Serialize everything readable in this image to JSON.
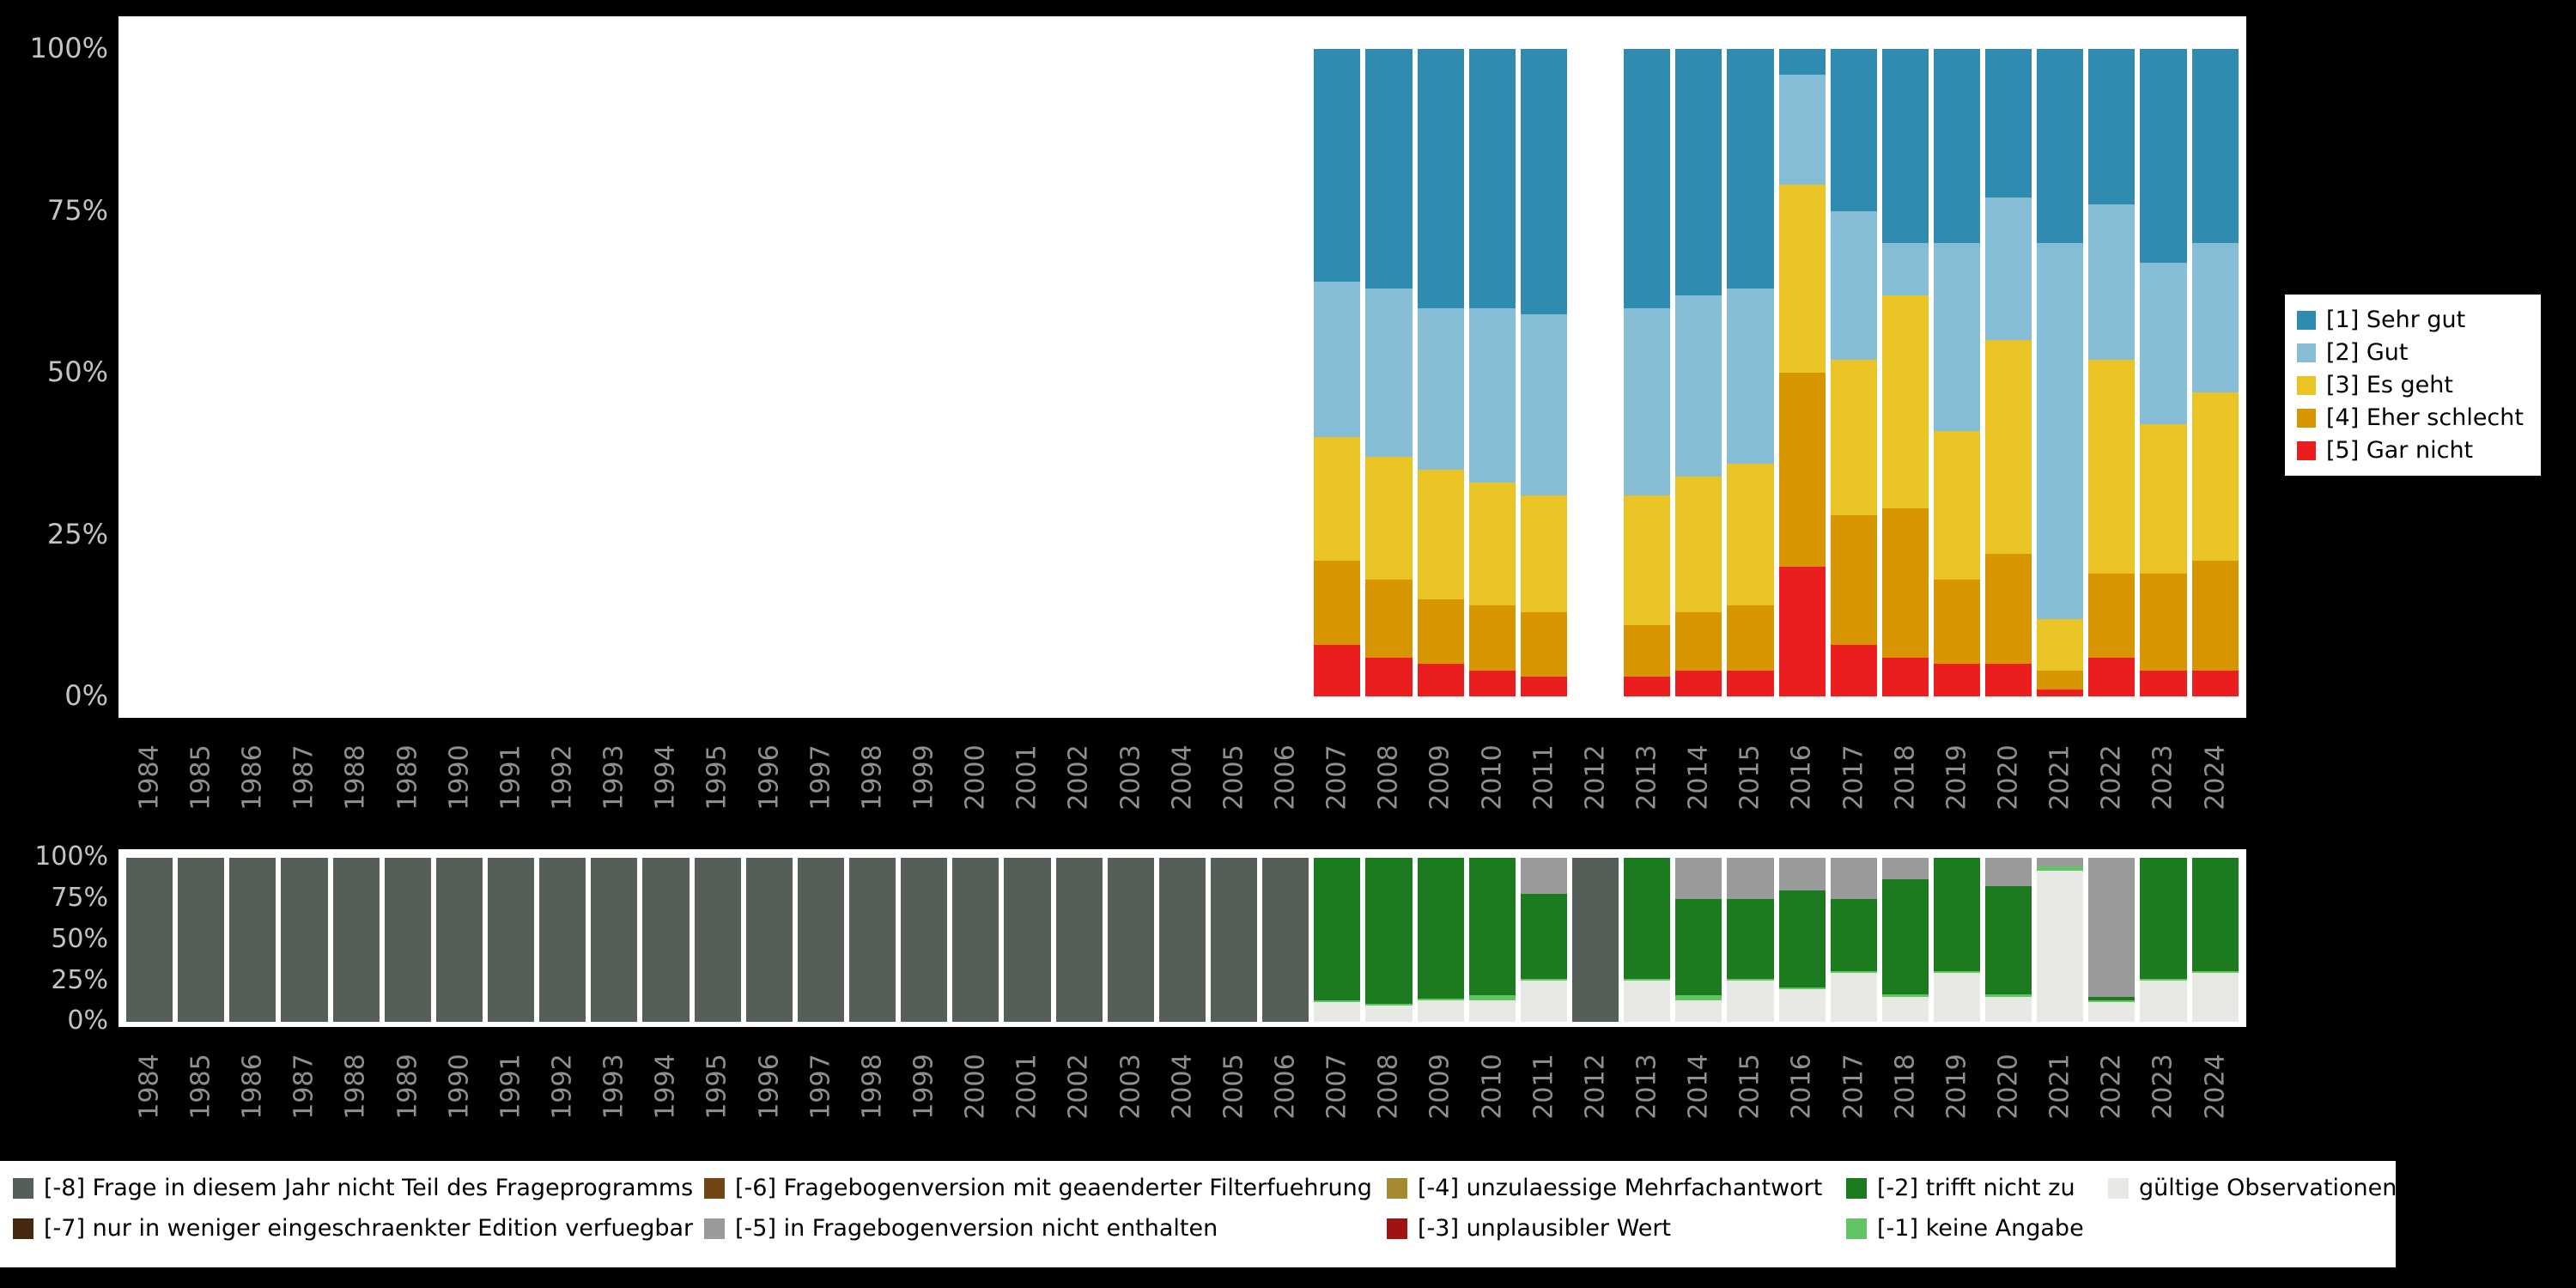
{
  "page": {
    "background": "#000000",
    "panel_background": "#ffffff"
  },
  "axes": {
    "y_tick_labels": [
      "100%",
      "75%",
      "50%",
      "25%",
      "0%"
    ],
    "x_tick_labels": [
      "1984",
      "1985",
      "1986",
      "1987",
      "1988",
      "1989",
      "1990",
      "1991",
      "1992",
      "1993",
      "1994",
      "1995",
      "1996",
      "1997",
      "1998",
      "1999",
      "2000",
      "2001",
      "2002",
      "2003",
      "2004",
      "2005",
      "2006",
      "2007",
      "2008",
      "2009",
      "2010",
      "2011",
      "2012",
      "2013",
      "2014",
      "2015",
      "2016",
      "2017",
      "2018",
      "2019",
      "2020",
      "2021",
      "2022",
      "2023",
      "2024"
    ]
  },
  "top_legend": {
    "items": [
      {
        "label": "[1] Sehr gut",
        "color": "#2f8cb0"
      },
      {
        "label": "[2] Gut",
        "color": "#85bcd6"
      },
      {
        "label": "[3] Es geht",
        "color": "#eac324"
      },
      {
        "label": "[4] Eher schlecht",
        "color": "#d79600"
      },
      {
        "label": "[5] Gar nicht",
        "color": "#ea1e1e"
      }
    ]
  },
  "bottom_legend": {
    "row1": [
      {
        "label": "[-8] Frage in diesem Jahr nicht Teil des Frageprogramms",
        "color": "#565e58"
      },
      {
        "label": "[-6] Fragebogenversion mit geaenderter Filterfuehrung",
        "color": "#6e4513"
      },
      {
        "label": "[-4] unzulaessige Mehrfachantwort",
        "color": "#a58a32"
      },
      {
        "label": "[-2] trifft nicht zu",
        "color": "#1c7a1f"
      },
      {
        "label": "gültige Observationen",
        "color": "#e6e9e4"
      }
    ],
    "row2": [
      {
        "label": "[-7] nur in weniger eingeschraenkter Edition verfuegbar",
        "color": "#45290f"
      },
      {
        "label": "[-5] in Fragebogenversion nicht enthalten",
        "color": "#9a9a9a"
      },
      {
        "label": "[-3] unplausibler Wert",
        "color": "#a11212"
      },
      {
        "label": "[-1] keine Angabe",
        "color": "#62c462"
      }
    ]
  },
  "chart_data": [
    {
      "id": "answer-distribution",
      "type": "bar",
      "stacked": true,
      "unit": "percent",
      "stack_order": "bottom-to-top",
      "ylim": [
        0,
        100
      ],
      "grid": false,
      "legend_position": "right",
      "missing_years": [
        "1984-2006",
        "2012"
      ],
      "categories": [
        "1984",
        "1985",
        "1986",
        "1987",
        "1988",
        "1989",
        "1990",
        "1991",
        "1992",
        "1993",
        "1994",
        "1995",
        "1996",
        "1997",
        "1998",
        "1999",
        "2000",
        "2001",
        "2002",
        "2003",
        "2004",
        "2005",
        "2006",
        "2007",
        "2008",
        "2009",
        "2010",
        "2011",
        "2012",
        "2013",
        "2014",
        "2015",
        "2016",
        "2017",
        "2018",
        "2019",
        "2020",
        "2021",
        "2022",
        "2023",
        "2024"
      ],
      "series": [
        {
          "name": "[5] Gar nicht",
          "color": "#ea1e1e",
          "values": [
            0,
            0,
            0,
            0,
            0,
            0,
            0,
            0,
            0,
            0,
            0,
            0,
            0,
            0,
            0,
            0,
            0,
            0,
            0,
            0,
            0,
            0,
            0,
            8,
            6,
            5,
            4,
            3,
            0,
            3,
            4,
            4,
            20,
            8,
            6,
            5,
            5,
            1,
            6,
            4,
            4
          ]
        },
        {
          "name": "[4] Eher schlecht",
          "color": "#d79600",
          "values": [
            0,
            0,
            0,
            0,
            0,
            0,
            0,
            0,
            0,
            0,
            0,
            0,
            0,
            0,
            0,
            0,
            0,
            0,
            0,
            0,
            0,
            0,
            0,
            13,
            12,
            10,
            10,
            10,
            0,
            8,
            9,
            10,
            30,
            20,
            23,
            13,
            17,
            3,
            13,
            15,
            17
          ]
        },
        {
          "name": "[3] Es geht",
          "color": "#eac324",
          "values": [
            0,
            0,
            0,
            0,
            0,
            0,
            0,
            0,
            0,
            0,
            0,
            0,
            0,
            0,
            0,
            0,
            0,
            0,
            0,
            0,
            0,
            0,
            0,
            19,
            19,
            20,
            19,
            18,
            0,
            20,
            21,
            22,
            29,
            24,
            33,
            23,
            33,
            8,
            33,
            23,
            26
          ]
        },
        {
          "name": "[2] Gut",
          "color": "#85bcd6",
          "values": [
            0,
            0,
            0,
            0,
            0,
            0,
            0,
            0,
            0,
            0,
            0,
            0,
            0,
            0,
            0,
            0,
            0,
            0,
            0,
            0,
            0,
            0,
            0,
            24,
            26,
            25,
            27,
            28,
            0,
            29,
            28,
            27,
            17,
            23,
            8,
            29,
            22,
            58,
            24,
            25,
            23
          ]
        },
        {
          "name": "[1] Sehr gut",
          "color": "#2f8cb0",
          "values": [
            0,
            0,
            0,
            0,
            0,
            0,
            0,
            0,
            0,
            0,
            0,
            0,
            0,
            0,
            0,
            0,
            0,
            0,
            0,
            0,
            0,
            0,
            0,
            36,
            37,
            40,
            40,
            41,
            0,
            40,
            38,
            37,
            4,
            25,
            30,
            30,
            23,
            30,
            24,
            33,
            30
          ]
        }
      ]
    },
    {
      "id": "missing-codes",
      "type": "bar",
      "stacked": true,
      "unit": "percent",
      "stack_order": "bottom-to-top",
      "ylim": [
        0,
        100
      ],
      "grid": false,
      "legend_position": "bottom",
      "categories": [
        "1984",
        "1985",
        "1986",
        "1987",
        "1988",
        "1989",
        "1990",
        "1991",
        "1992",
        "1993",
        "1994",
        "1995",
        "1996",
        "1997",
        "1998",
        "1999",
        "2000",
        "2001",
        "2002",
        "2003",
        "2004",
        "2005",
        "2006",
        "2007",
        "2008",
        "2009",
        "2010",
        "2011",
        "2012",
        "2013",
        "2014",
        "2015",
        "2016",
        "2017",
        "2018",
        "2019",
        "2020",
        "2021",
        "2022",
        "2023",
        "2024"
      ],
      "series": [
        {
          "name": "gültige Observationen",
          "color": "#e6e9e4",
          "values": [
            0,
            0,
            0,
            0,
            0,
            0,
            0,
            0,
            0,
            0,
            0,
            0,
            0,
            0,
            0,
            0,
            0,
            0,
            0,
            0,
            0,
            0,
            0,
            12,
            10,
            13,
            13,
            25,
            0,
            25,
            13,
            25,
            20,
            30,
            15,
            30,
            15,
            92,
            12,
            25,
            30
          ]
        },
        {
          "name": "[-1] keine Angabe",
          "color": "#62c462",
          "values": [
            0,
            0,
            0,
            0,
            0,
            0,
            0,
            0,
            0,
            0,
            0,
            0,
            0,
            0,
            0,
            0,
            0,
            0,
            0,
            0,
            0,
            0,
            0,
            1,
            1,
            1,
            3,
            1,
            0,
            1,
            3,
            1,
            1,
            1,
            2,
            1,
            2,
            3,
            1,
            1,
            1
          ]
        },
        {
          "name": "[-2] trifft nicht zu",
          "color": "#1c7a1f",
          "values": [
            0,
            0,
            0,
            0,
            0,
            0,
            0,
            0,
            0,
            0,
            0,
            0,
            0,
            0,
            0,
            0,
            0,
            0,
            0,
            0,
            0,
            0,
            0,
            87,
            89,
            86,
            84,
            52,
            0,
            74,
            59,
            49,
            59,
            44,
            70,
            69,
            66,
            0,
            2,
            74,
            69
          ]
        },
        {
          "name": "[-3] unplausibler Wert",
          "color": "#a11212",
          "values": [
            0,
            0,
            0,
            0,
            0,
            0,
            0,
            0,
            0,
            0,
            0,
            0,
            0,
            0,
            0,
            0,
            0,
            0,
            0,
            0,
            0,
            0,
            0,
            0,
            0,
            0,
            0,
            0,
            0,
            0,
            0,
            0,
            0,
            0,
            0,
            0,
            0,
            0,
            0,
            0,
            0
          ]
        },
        {
          "name": "[-4] unzulaessige Mehrfachantwort",
          "color": "#a58a32",
          "values": [
            0,
            0,
            0,
            0,
            0,
            0,
            0,
            0,
            0,
            0,
            0,
            0,
            0,
            0,
            0,
            0,
            0,
            0,
            0,
            0,
            0,
            0,
            0,
            0,
            0,
            0,
            0,
            0,
            0,
            0,
            0,
            0,
            0,
            0,
            0,
            0,
            0,
            0,
            0,
            0,
            0
          ]
        },
        {
          "name": "[-5] in Fragebogenversion nicht enthalten",
          "color": "#9a9a9a",
          "values": [
            0,
            0,
            0,
            0,
            0,
            0,
            0,
            0,
            0,
            0,
            0,
            0,
            0,
            0,
            0,
            0,
            0,
            0,
            0,
            0,
            0,
            0,
            0,
            0,
            0,
            0,
            0,
            22,
            0,
            0,
            25,
            25,
            20,
            25,
            13,
            0,
            17,
            5,
            85,
            0,
            0
          ]
        },
        {
          "name": "[-6] Fragebogenversion mit geaenderter Filterfuehrung",
          "color": "#6e4513",
          "values": [
            0,
            0,
            0,
            0,
            0,
            0,
            0,
            0,
            0,
            0,
            0,
            0,
            0,
            0,
            0,
            0,
            0,
            0,
            0,
            0,
            0,
            0,
            0,
            0,
            0,
            0,
            0,
            0,
            0,
            0,
            0,
            0,
            0,
            0,
            0,
            0,
            0,
            0,
            0,
            0,
            0
          ]
        },
        {
          "name": "[-7] nur in weniger eingeschraenkter Edition verfuegbar",
          "color": "#45290f",
          "values": [
            0,
            0,
            0,
            0,
            0,
            0,
            0,
            0,
            0,
            0,
            0,
            0,
            0,
            0,
            0,
            0,
            0,
            0,
            0,
            0,
            0,
            0,
            0,
            0,
            0,
            0,
            0,
            0,
            0,
            0,
            0,
            0,
            0,
            0,
            0,
            0,
            0,
            0,
            0,
            0,
            0
          ]
        },
        {
          "name": "[-8] Frage in diesem Jahr nicht Teil des Frageprogramms",
          "color": "#565e58",
          "values": [
            100,
            100,
            100,
            100,
            100,
            100,
            100,
            100,
            100,
            100,
            100,
            100,
            100,
            100,
            100,
            100,
            100,
            100,
            100,
            100,
            100,
            100,
            100,
            0,
            0,
            0,
            0,
            0,
            100,
            0,
            0,
            0,
            0,
            0,
            0,
            0,
            0,
            0,
            0,
            0,
            0
          ]
        }
      ]
    }
  ]
}
